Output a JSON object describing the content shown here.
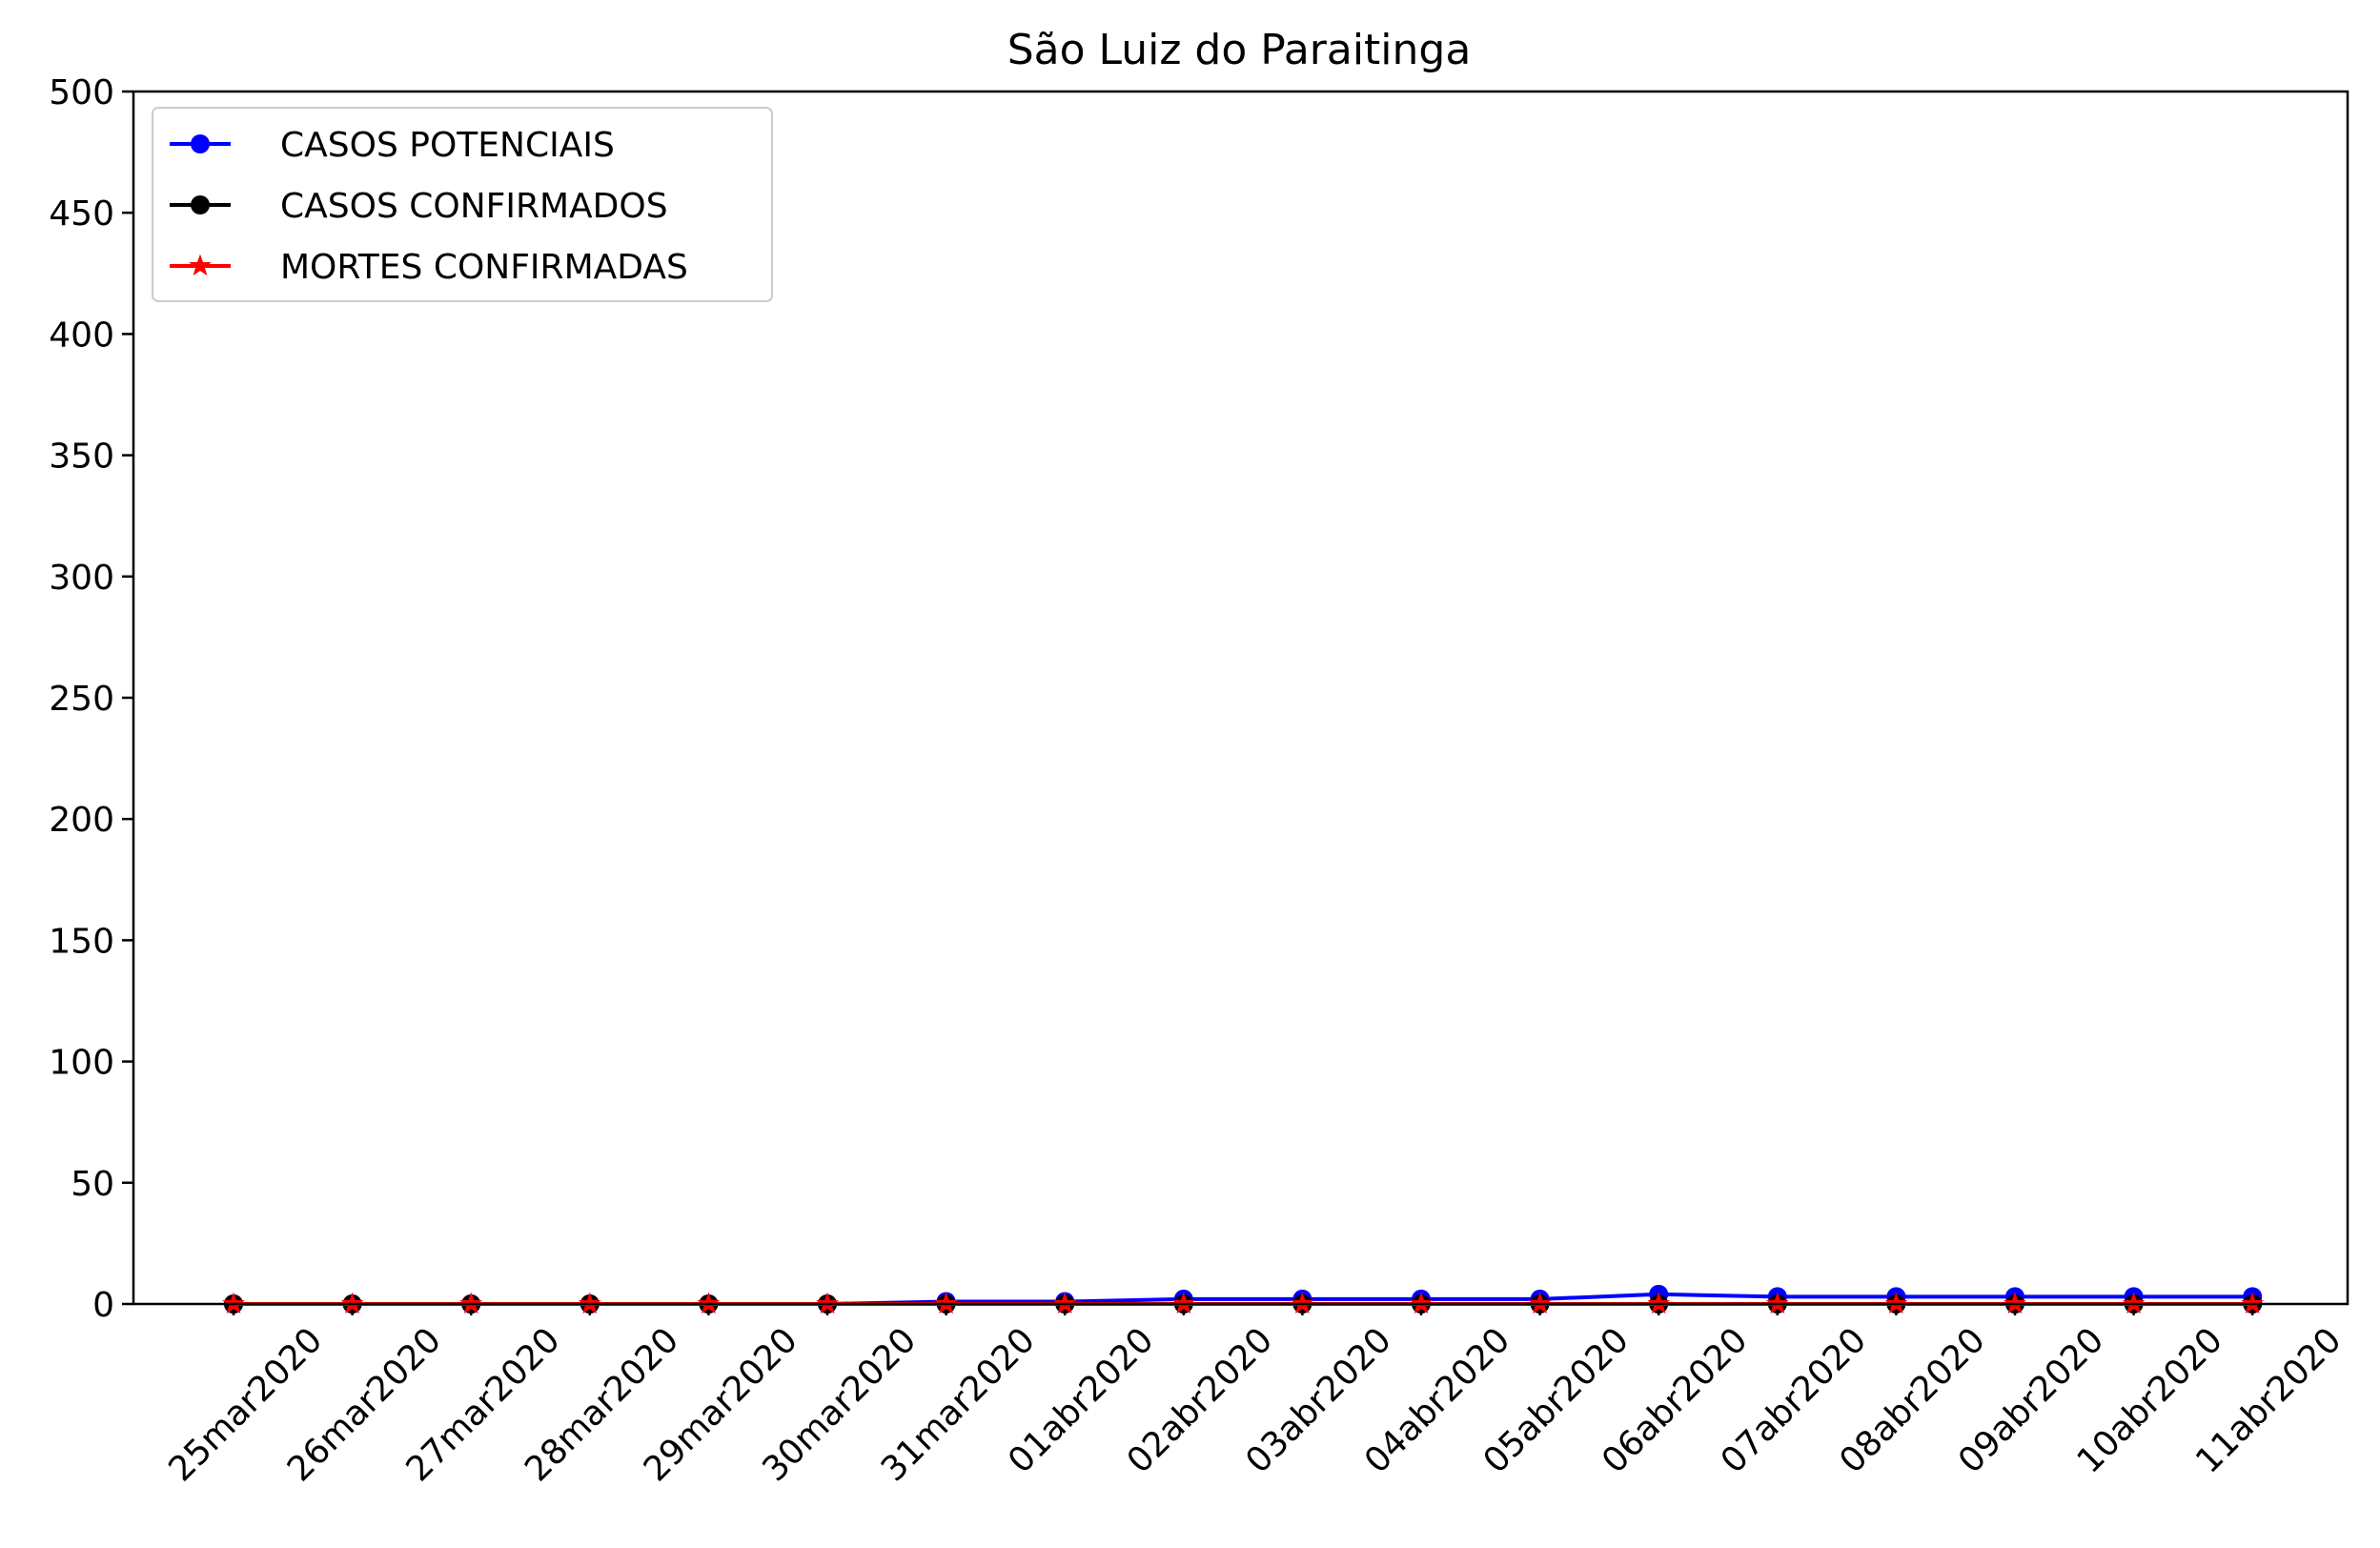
{
  "chart_data": {
    "type": "line",
    "title": "São Luiz do Paraitinga",
    "xlabel": "",
    "ylabel": "",
    "ylim": [
      0,
      500
    ],
    "yticks": [
      0,
      50,
      100,
      150,
      200,
      250,
      300,
      350,
      400,
      450,
      500
    ],
    "grid": false,
    "legend_position": "top-left",
    "categories": [
      "25mar2020",
      "26mar2020",
      "27mar2020",
      "28mar2020",
      "29mar2020",
      "30mar2020",
      "31mar2020",
      "01abr2020",
      "02abr2020",
      "03abr2020",
      "04abr2020",
      "05abr2020",
      "06abr2020",
      "07abr2020",
      "08abr2020",
      "09abr2020",
      "10abr2020",
      "11abr2020"
    ],
    "series": [
      {
        "name": "CASOS POTENCIAIS",
        "color": "#0000ff",
        "marker": "circle",
        "values": [
          0,
          0,
          0,
          0,
          0,
          0,
          1,
          1,
          2,
          2,
          2,
          2,
          4,
          3,
          3,
          3,
          3,
          3
        ]
      },
      {
        "name": "CASOS CONFIRMADOS",
        "color": "#000000",
        "marker": "circle",
        "values": [
          0,
          0,
          0,
          0,
          0,
          0,
          0,
          0,
          0,
          0,
          0,
          0,
          0,
          0,
          0,
          0,
          0,
          0
        ]
      },
      {
        "name": "MORTES CONFIRMADAS",
        "color": "#ff0000",
        "marker": "star",
        "values": [
          0,
          0,
          0,
          0,
          0,
          0,
          0,
          0,
          0,
          0,
          0,
          0,
          0,
          0,
          0,
          0,
          0,
          0
        ]
      }
    ]
  }
}
